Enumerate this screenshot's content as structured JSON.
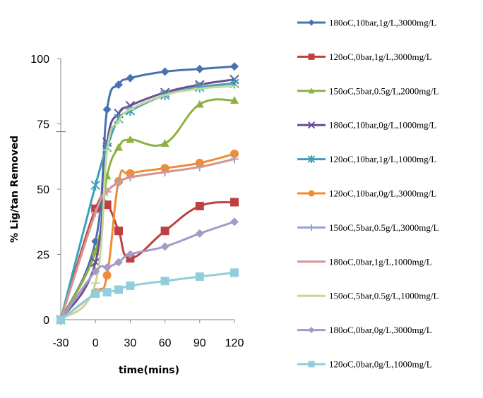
{
  "chart_data": {
    "type": "line",
    "title": "",
    "xlabel": "time(mins)",
    "ylabel": "% Lig/tan Removed",
    "xlim": [
      -30,
      120
    ],
    "ylim": [
      0,
      100
    ],
    "x_ticks": [
      -30,
      0,
      30,
      60,
      90,
      120
    ],
    "y_ticks": [
      0,
      25,
      50,
      75,
      100
    ],
    "x_tick_labels": [
      "-30",
      "0",
      "30",
      "60",
      "90",
      "120"
    ],
    "y_tick_labels": [
      "0",
      "25",
      "50",
      "75",
      "100"
    ],
    "grid": false,
    "legend_position": "right",
    "series": [
      {
        "name": "180oC,10bar,1g/L,3000mg/L",
        "color": "#4a72b0",
        "marker": "diamond",
        "x": [
          -30,
          0,
          10,
          20,
          30,
          60,
          90,
          120
        ],
        "y": [
          0,
          30,
          80.5,
          90,
          92.5,
          95,
          96,
          97
        ]
      },
      {
        "name": "120oC,0bar,1g/L,3000mg/L",
        "color": "#bf4040",
        "marker": "square",
        "x": [
          -30,
          0,
          10,
          20,
          30,
          60,
          90,
          120
        ],
        "y": [
          0,
          42.5,
          44,
          34,
          23.5,
          34,
          43.5,
          45
        ]
      },
      {
        "name": "150oC,5bar,0.5g/L,2000mg/L",
        "color": "#8db143",
        "marker": "triangle",
        "x": [
          -30,
          0,
          10,
          20,
          30,
          60,
          90,
          120
        ],
        "y": [
          0,
          26,
          55,
          66,
          69,
          67.5,
          82.5,
          84
        ]
      },
      {
        "name": "180oC,10bar,0g/L,1000mg/L",
        "color": "#6a4f95",
        "marker": "x",
        "x": [
          -30,
          0,
          10,
          20,
          30,
          60,
          90,
          120
        ],
        "y": [
          0,
          22,
          68,
          79,
          82,
          87,
          90,
          92
        ]
      },
      {
        "name": "120oC,10bar,1g/L,1000mg/L",
        "color": "#3ca0b8",
        "marker": "star",
        "x": [
          -30,
          0,
          10,
          20,
          30,
          60,
          90,
          120
        ],
        "y": [
          0,
          51.5,
          66,
          77,
          80,
          86,
          89,
          90.5
        ]
      },
      {
        "name": "120oC,10bar,0g/L,3000mg/L",
        "color": "#f08c33",
        "marker": "circle",
        "x": [
          -30,
          0,
          10,
          20,
          30,
          60,
          90,
          120
        ],
        "y": [
          0,
          10.5,
          17,
          53,
          56,
          58,
          60,
          63.5
        ]
      },
      {
        "name": "150oC,5bar,0.5g/L,3000mg/L",
        "color": "#8ea6d2",
        "marker": "plus",
        "x": [
          -30,
          0,
          10,
          20,
          30,
          60,
          90,
          120
        ],
        "y": [
          0,
          41,
          49,
          52.5,
          54.5,
          56.5,
          58.5,
          61.5
        ]
      },
      {
        "name": "180oC,0bar,1g/L,1000mg/L",
        "color": "#d99591",
        "marker": "dash",
        "x": [
          -30,
          0,
          10,
          20,
          30,
          60,
          90,
          120
        ],
        "y": [
          0,
          41,
          49,
          52.5,
          54.5,
          56.5,
          58.5,
          61.5
        ]
      },
      {
        "name": "150oC,5bar,0.5g/L,1000mg/L",
        "color": "#c4d79b",
        "marker": "dash",
        "x": [
          -30,
          0,
          10,
          20,
          30,
          60,
          90,
          120
        ],
        "y": [
          0,
          14,
          65,
          76,
          80.5,
          86,
          88.5,
          89.5
        ]
      },
      {
        "name": "180oC,0bar,0g/L,3000mg/L",
        "color": "#a599c6",
        "marker": "diamond",
        "x": [
          -30,
          0,
          10,
          20,
          30,
          60,
          90,
          120
        ],
        "y": [
          0,
          18.5,
          20,
          22,
          25,
          28,
          33,
          37.5
        ]
      },
      {
        "name": "120oC,0bar,0g/L,1000mg/L",
        "color": "#92cddc",
        "marker": "square",
        "x": [
          -30,
          0,
          10,
          20,
          30,
          60,
          90,
          120
        ],
        "y": [
          0,
          10,
          10.5,
          11.5,
          13,
          14.8,
          16.5,
          18
        ]
      }
    ]
  }
}
